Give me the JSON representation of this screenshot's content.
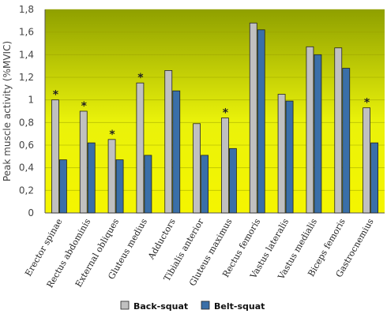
{
  "chart_data": {
    "type": "bar",
    "ylabel": "Peak muscle activity (%MVIC)",
    "ylim": [
      0,
      1.8
    ],
    "yticks": [
      "0",
      "0,2",
      "0,4",
      "0,6",
      "0,8",
      "1",
      "1,2",
      "1,4",
      "1,6",
      "1,8"
    ],
    "ytick_values": [
      0,
      0.2,
      0.4,
      0.6,
      0.8,
      1.0,
      1.2,
      1.4,
      1.6,
      1.8
    ],
    "categories": [
      "Erector spinae",
      "Rectus abdominis",
      "External obliques",
      "Gluteus medius",
      "Adductors",
      "Tibialis anterior",
      "Gluteus maximus",
      "Rectus femoris",
      "Vastus lateralis",
      "Vastus medialis",
      "Biceps femoris",
      "Gastrocnemius"
    ],
    "series": [
      {
        "name": "Back-squat",
        "color": "#c0c0c0",
        "values": [
          1.0,
          0.9,
          0.65,
          1.15,
          1.26,
          0.79,
          0.84,
          1.68,
          1.05,
          1.47,
          1.46,
          0.93
        ]
      },
      {
        "name": "Belt-squat",
        "color": "#3a6fa8",
        "values": [
          0.47,
          0.62,
          0.47,
          0.51,
          1.08,
          0.51,
          0.57,
          1.62,
          0.99,
          1.4,
          1.28,
          0.62
        ]
      }
    ],
    "significance_marker": "*",
    "significant": [
      true,
      true,
      true,
      true,
      false,
      false,
      true,
      false,
      false,
      false,
      false,
      true
    ],
    "legend_position": "bottom",
    "background_gradient": [
      "#8fa000",
      "#eaf20a",
      "#f5f500"
    ],
    "grid": true
  }
}
